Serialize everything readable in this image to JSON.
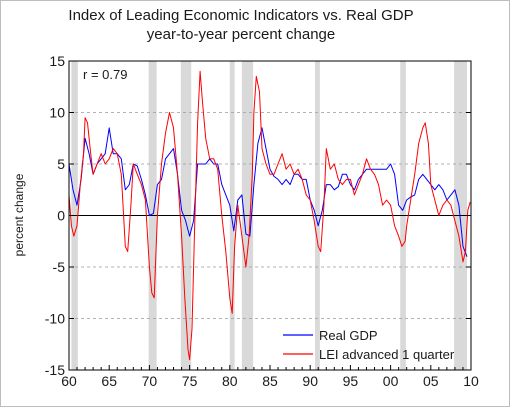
{
  "chart_data": {
    "type": "line",
    "title": "Index of Leading Economic Indicators vs. Real GDP",
    "subtitle": "year-to-year percent change",
    "ylabel": "percent change",
    "xlabel": "",
    "annotation": "r = 0.79",
    "xlim": [
      1960,
      2010
    ],
    "ylim": [
      -15,
      15
    ],
    "y_ticks": [
      -15,
      -10,
      -5,
      0,
      5,
      10,
      15
    ],
    "x_ticks": [
      1960,
      1965,
      1970,
      1975,
      1980,
      1985,
      1990,
      1995,
      2000,
      2005,
      2010
    ],
    "x_tick_labels": [
      "60",
      "65",
      "70",
      "75",
      "80",
      "85",
      "90",
      "95",
      "00",
      "05",
      "10"
    ],
    "grid": "horizontal dashed",
    "legend_position": "bottom-right",
    "recession_shading": [
      [
        1960.3,
        1961.1
      ],
      [
        1969.9,
        1970.9
      ],
      [
        1973.9,
        1975.2
      ],
      [
        1980.0,
        1980.6
      ],
      [
        1981.5,
        1982.9
      ],
      [
        1990.6,
        1991.2
      ],
      [
        2001.2,
        2001.9
      ],
      [
        2007.9,
        2009.5
      ]
    ],
    "series": [
      {
        "name": "Real GDP",
        "color": "#0000ff",
        "x": [
          1960.0,
          1960.5,
          1961.0,
          1961.5,
          1962.0,
          1962.5,
          1963.0,
          1963.5,
          1964.0,
          1964.5,
          1965.0,
          1965.5,
          1966.0,
          1966.5,
          1967.0,
          1967.5,
          1968.0,
          1968.5,
          1969.0,
          1969.5,
          1970.0,
          1970.5,
          1971.0,
          1971.5,
          1972.0,
          1972.5,
          1973.0,
          1973.5,
          1974.0,
          1974.5,
          1975.0,
          1975.5,
          1976.0,
          1976.5,
          1977.0,
          1977.5,
          1978.0,
          1978.5,
          1979.0,
          1979.5,
          1980.0,
          1980.5,
          1981.0,
          1981.5,
          1982.0,
          1982.5,
          1983.0,
          1983.5,
          1984.0,
          1984.5,
          1985.0,
          1985.5,
          1986.0,
          1986.5,
          1987.0,
          1987.5,
          1988.0,
          1988.5,
          1989.0,
          1989.5,
          1990.0,
          1990.5,
          1991.0,
          1991.5,
          1992.0,
          1992.5,
          1993.0,
          1993.5,
          1994.0,
          1994.5,
          1995.0,
          1995.5,
          1996.0,
          1996.5,
          1997.0,
          1997.5,
          1998.0,
          1998.5,
          1999.0,
          1999.5,
          2000.0,
          2000.5,
          2001.0,
          2001.5,
          2002.0,
          2002.5,
          2003.0,
          2003.5,
          2004.0,
          2004.5,
          2005.0,
          2005.5,
          2006.0,
          2006.5,
          2007.0,
          2007.5,
          2008.0,
          2008.5,
          2009.0,
          2009.5
        ],
        "values": [
          5.0,
          2.5,
          1.0,
          3.5,
          7.5,
          6.0,
          4.0,
          5.0,
          5.5,
          6.0,
          8.5,
          6.0,
          6.0,
          5.5,
          2.5,
          3.0,
          5.0,
          4.8,
          3.5,
          2.0,
          0.0,
          0.2,
          3.0,
          3.5,
          5.5,
          6.0,
          6.5,
          4.0,
          0.5,
          -0.5,
          -2.0,
          -0.5,
          5.0,
          5.0,
          5.0,
          5.5,
          5.0,
          5.0,
          3.0,
          2.0,
          1.0,
          -1.5,
          1.5,
          2.0,
          -1.8,
          -2.0,
          3.0,
          7.0,
          8.5,
          6.5,
          4.5,
          3.8,
          3.5,
          3.0,
          3.5,
          3.0,
          4.0,
          4.0,
          3.5,
          3.5,
          1.5,
          0.5,
          -1.0,
          0.5,
          3.0,
          3.0,
          2.5,
          2.8,
          4.0,
          4.0,
          3.0,
          2.5,
          3.5,
          4.0,
          4.5,
          4.5,
          4.5,
          4.5,
          4.5,
          4.5,
          5.0,
          4.0,
          1.0,
          0.5,
          1.5,
          1.8,
          2.0,
          3.5,
          4.0,
          3.5,
          3.0,
          2.5,
          3.0,
          2.5,
          1.5,
          2.0,
          2.5,
          1.0,
          -3.0,
          -4.0
        ]
      },
      {
        "name": "LEI advanced 1 quarter",
        "color": "#ff0000",
        "x": [
          1960.0,
          1960.3,
          1960.6,
          1961.0,
          1961.4,
          1961.8,
          1962.0,
          1962.3,
          1962.7,
          1963.0,
          1963.5,
          1964.0,
          1964.5,
          1965.0,
          1965.5,
          1966.0,
          1966.5,
          1967.0,
          1967.3,
          1967.7,
          1968.0,
          1968.5,
          1969.0,
          1969.5,
          1970.0,
          1970.3,
          1970.6,
          1971.0,
          1971.5,
          1972.0,
          1972.5,
          1973.0,
          1973.5,
          1974.0,
          1974.4,
          1974.8,
          1975.0,
          1975.3,
          1975.6,
          1976.0,
          1976.3,
          1976.6,
          1977.0,
          1977.5,
          1978.0,
          1978.5,
          1979.0,
          1979.5,
          1980.0,
          1980.3,
          1980.6,
          1981.0,
          1981.5,
          1982.0,
          1982.4,
          1982.8,
          1983.0,
          1983.3,
          1983.7,
          1984.0,
          1984.5,
          1985.0,
          1985.5,
          1986.0,
          1986.5,
          1987.0,
          1987.5,
          1988.0,
          1988.5,
          1989.0,
          1989.5,
          1990.0,
          1990.5,
          1991.0,
          1991.3,
          1991.7,
          1992.0,
          1992.5,
          1993.0,
          1993.5,
          1994.0,
          1994.5,
          1995.0,
          1995.5,
          1996.0,
          1996.5,
          1997.0,
          1997.5,
          1998.0,
          1998.5,
          1999.0,
          1999.5,
          2000.0,
          2000.5,
          2001.0,
          2001.4,
          2001.8,
          2002.0,
          2002.5,
          2003.0,
          2003.5,
          2004.0,
          2004.3,
          2004.7,
          2005.0,
          2005.5,
          2006.0,
          2006.5,
          2007.0,
          2007.5,
          2008.0,
          2008.5,
          2009.0,
          2009.3,
          2009.6,
          2009.9
        ],
        "values": [
          2.0,
          -1.0,
          -2.0,
          -1.0,
          3.0,
          6.0,
          9.5,
          9.0,
          6.0,
          4.0,
          5.0,
          6.0,
          5.0,
          5.5,
          6.5,
          6.0,
          4.0,
          -3.0,
          -3.5,
          1.0,
          5.0,
          4.0,
          3.0,
          1.5,
          -5.0,
          -7.5,
          -8.0,
          0.0,
          5.0,
          8.0,
          10.0,
          8.5,
          4.0,
          -2.0,
          -8.0,
          -13.0,
          -14.0,
          -11.0,
          -2.0,
          9.0,
          14.0,
          11.0,
          7.5,
          5.5,
          5.5,
          4.5,
          0.0,
          -3.5,
          -8.0,
          -9.5,
          -3.0,
          1.0,
          -2.0,
          -5.0,
          -2.0,
          4.0,
          10.0,
          13.5,
          12.0,
          6.5,
          5.0,
          4.0,
          4.0,
          5.0,
          6.0,
          4.5,
          5.0,
          4.0,
          4.5,
          3.5,
          2.0,
          1.5,
          -0.5,
          -3.0,
          -3.5,
          1.0,
          6.5,
          4.5,
          5.0,
          3.5,
          3.0,
          3.5,
          3.5,
          2.0,
          3.0,
          4.0,
          5.5,
          4.5,
          4.0,
          3.0,
          1.0,
          1.5,
          1.0,
          -1.0,
          -2.0,
          -3.0,
          -2.5,
          -1.0,
          1.5,
          4.0,
          7.0,
          8.5,
          9.0,
          7.0,
          3.0,
          1.5,
          0.0,
          1.0,
          1.5,
          1.0,
          -0.5,
          -2.0,
          -4.5,
          -3.5,
          0.5,
          1.3
        ]
      }
    ]
  }
}
